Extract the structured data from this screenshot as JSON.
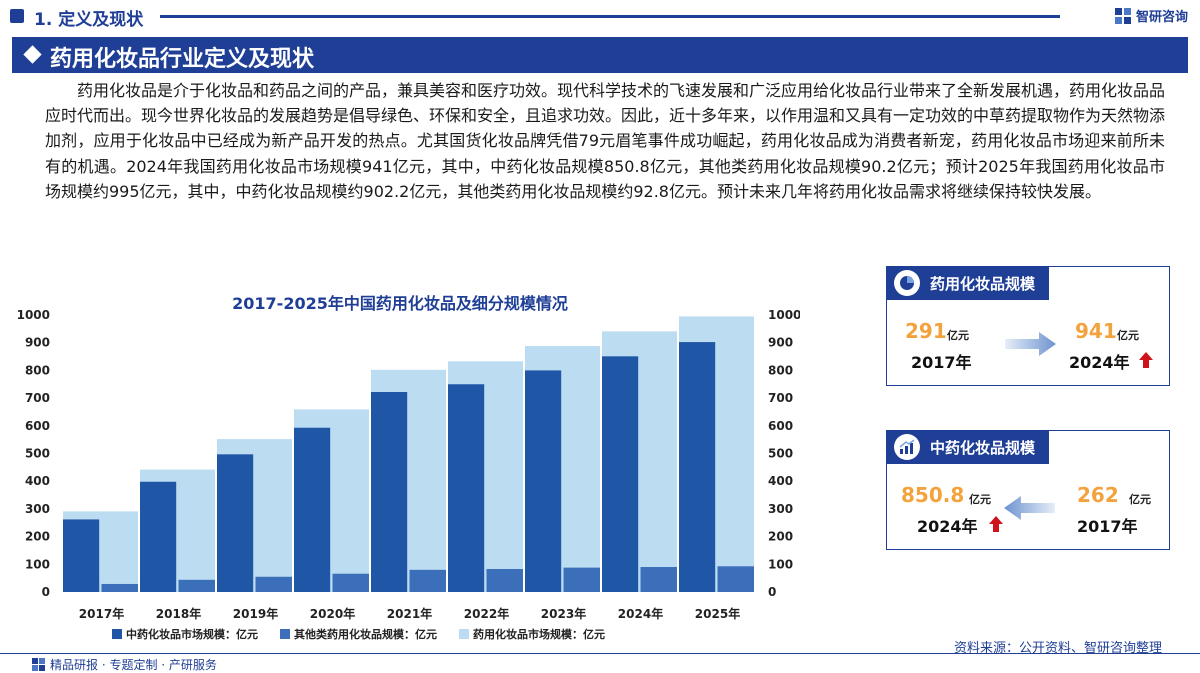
{
  "header": {
    "section_title": "1. 定义及现状",
    "logo_text": "智研咨询"
  },
  "banner": {
    "title": "药用化妆品行业定义及现状"
  },
  "intro_text": "药用化妆品是介于化妆品和药品之间的产品，兼具美容和医疗功效。现代科学技术的飞速发展和广泛应用给化妆品行业带来了全新发展机遇，药用化妆品品应时代而出。现今世界化妆品的发展趋势是倡导绿色、环保和安全，且追求功效。因此，近十多年来，以作用温和又具有一定功效的中草药提取物作为天然物添加剂，应用于化妆品中已经成为新产品开发的热点。尤其国货化妆品牌凭借79元眉笔事件成功崛起，药用化妆品成为消费者新宠，药用化妆品市场迎来前所未有的机遇。2024年我国药用化妆品市场规模941亿元，其中，中药化妆品规模850.8亿元，其他类药用化妆品规模90.2亿元；预计2025年我国药用化妆品市场规模约995亿元，其中，中药化妆品规模约902.2亿元，其他类药用化妆品规模约92.8亿元。预计未来几年将药用化妆品需求将继续保持较快发展。",
  "chart_data": {
    "type": "bar",
    "title": "2017-2025年中国药用化妆品及细分规模情况",
    "categories": [
      "2017年",
      "2018年",
      "2019年",
      "2020年",
      "2021年",
      "2022年",
      "2023年",
      "2024年",
      "2025年"
    ],
    "series": [
      {
        "name": "中药化妆品市场规模：亿元",
        "values": [
          262,
          398,
          497,
          593,
          722,
          750,
          800,
          850.8,
          902.2
        ],
        "color": "#1f56a6"
      },
      {
        "name": "其他类药用化妆品规模：亿元",
        "values": [
          29,
          44,
          55,
          66,
          80,
          83,
          88,
          90.2,
          92.8
        ],
        "color": "#3b6fba"
      },
      {
        "name": "药用化妆品市场规模：亿元",
        "values": [
          291,
          442,
          552,
          659,
          802,
          833,
          888,
          941,
          995
        ],
        "color": "#bcdcf2"
      }
    ],
    "yticks": [
      0,
      100,
      200,
      300,
      400,
      500,
      600,
      700,
      800,
      900,
      1000
    ],
    "ylim": [
      0,
      1000
    ],
    "secondary_axis": true,
    "legend_position": "bottom"
  },
  "card1": {
    "title": "药用化妆品规模",
    "from_value": "291",
    "from_unit": "亿元",
    "from_year": "2017年",
    "to_value": "941",
    "to_unit": "亿元",
    "to_year": "2024年"
  },
  "card2": {
    "title": "中药化妆品规模",
    "left_value": "850.8",
    "left_unit": "亿元",
    "left_year": "2024年",
    "right_value": "262",
    "right_unit": "亿元",
    "right_year": "2017年"
  },
  "source": "资料来源：公开资料、智研咨询整理",
  "footer": "精品研报 · 专题定制 · 产研服务",
  "colors": {
    "brand": "#1f3f96",
    "accent_value": "#f4a23c",
    "up_arrow": "#d0121b"
  }
}
